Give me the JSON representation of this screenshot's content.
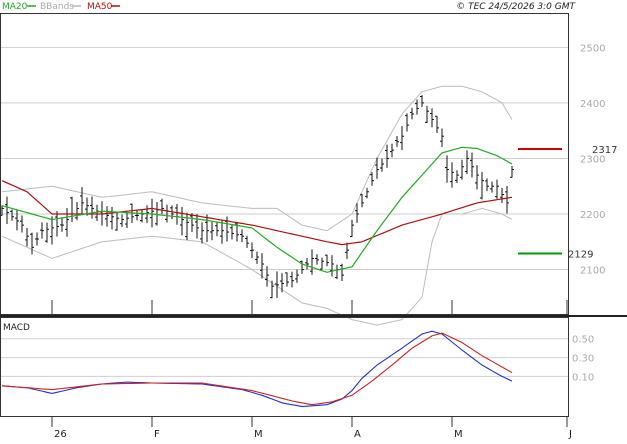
{
  "header": {
    "legend": [
      {
        "label": "MA20",
        "color": "#22aa22"
      },
      {
        "label": "BBands",
        "color": "#b8b8b8"
      },
      {
        "label": "MA50",
        "color": "#aa1111"
      }
    ],
    "copyright": "© TEC 24/5/2026 3:0 GMT"
  },
  "macd_label": "MACD",
  "levels": {
    "resistance": {
      "value": 2317,
      "label": "2317",
      "color": "#cc0000"
    },
    "support": {
      "value": 2129,
      "label": "2129",
      "color": "#009900"
    }
  },
  "chart_data": [
    {
      "type": "ohlc",
      "title": "",
      "ylim": [
        2020,
        2560
      ],
      "y_ticks": [
        {
          "value": 2500,
          "label": "2500"
        },
        {
          "value": 2400,
          "label": "2400"
        },
        {
          "value": 2300,
          "label": "2300"
        },
        {
          "value": 2200,
          "label": "2200"
        },
        {
          "value": 2100,
          "label": "2100"
        }
      ],
      "x_ticks": [
        {
          "bar": 10,
          "label": "26"
        },
        {
          "bar": 30,
          "label": "F"
        },
        {
          "bar": 50,
          "label": "M"
        },
        {
          "bar": 70,
          "label": "A"
        },
        {
          "bar": 90,
          "label": "M"
        },
        {
          "bar": 113,
          "label": "J"
        }
      ],
      "bars": 115,
      "price_anchors": [
        [
          0,
          2210
        ],
        [
          4,
          2180
        ],
        [
          6,
          2140
        ],
        [
          8,
          2170
        ],
        [
          12,
          2180
        ],
        [
          16,
          2220
        ],
        [
          20,
          2200
        ],
        [
          24,
          2190
        ],
        [
          28,
          2200
        ],
        [
          32,
          2210
        ],
        [
          36,
          2190
        ],
        [
          40,
          2170
        ],
        [
          44,
          2170
        ],
        [
          48,
          2160
        ],
        [
          52,
          2110
        ],
        [
          54,
          2070
        ],
        [
          58,
          2080
        ],
        [
          62,
          2120
        ],
        [
          66,
          2110
        ],
        [
          68,
          2090
        ],
        [
          70,
          2180
        ],
        [
          73,
          2240
        ],
        [
          75,
          2280
        ],
        [
          77,
          2300
        ],
        [
          79,
          2330
        ],
        [
          80,
          2340
        ],
        [
          82,
          2380
        ],
        [
          84,
          2400
        ],
        [
          86,
          2370
        ],
        [
          88,
          2340
        ],
        [
          89,
          2280
        ],
        [
          91,
          2270
        ],
        [
          93,
          2300
        ],
        [
          95,
          2270
        ],
        [
          97,
          2250
        ],
        [
          99,
          2250
        ],
        [
          101,
          2220
        ],
        [
          102,
          2280
        ]
      ],
      "ma20_anchors": [
        [
          0,
          2215
        ],
        [
          10,
          2190
        ],
        [
          20,
          2205
        ],
        [
          30,
          2200
        ],
        [
          40,
          2190
        ],
        [
          50,
          2175
        ],
        [
          55,
          2140
        ],
        [
          60,
          2110
        ],
        [
          65,
          2095
        ],
        [
          70,
          2105
        ],
        [
          75,
          2170
        ],
        [
          80,
          2230
        ],
        [
          85,
          2280
        ],
        [
          88,
          2310
        ],
        [
          92,
          2320
        ],
        [
          95,
          2318
        ],
        [
          99,
          2305
        ],
        [
          102,
          2290
        ]
      ],
      "ma50_anchors": [
        [
          0,
          2260
        ],
        [
          5,
          2240
        ],
        [
          10,
          2200
        ],
        [
          20,
          2200
        ],
        [
          30,
          2210
        ],
        [
          40,
          2195
        ],
        [
          50,
          2180
        ],
        [
          60,
          2160
        ],
        [
          65,
          2150
        ],
        [
          68,
          2145
        ],
        [
          72,
          2150
        ],
        [
          80,
          2180
        ],
        [
          88,
          2200
        ],
        [
          95,
          2220
        ],
        [
          102,
          2230
        ]
      ],
      "bb_upper_anchors": [
        [
          0,
          2240
        ],
        [
          10,
          2250
        ],
        [
          20,
          2230
        ],
        [
          30,
          2240
        ],
        [
          40,
          2220
        ],
        [
          50,
          2210
        ],
        [
          55,
          2210
        ],
        [
          60,
          2180
        ],
        [
          65,
          2170
        ],
        [
          70,
          2200
        ],
        [
          75,
          2300
        ],
        [
          80,
          2380
        ],
        [
          84,
          2420
        ],
        [
          88,
          2430
        ],
        [
          92,
          2430
        ],
        [
          96,
          2420
        ],
        [
          100,
          2400
        ],
        [
          102,
          2370
        ]
      ],
      "bb_lower_anchors": [
        [
          0,
          2160
        ],
        [
          10,
          2120
        ],
        [
          20,
          2150
        ],
        [
          30,
          2160
        ],
        [
          40,
          2150
        ],
        [
          50,
          2100
        ],
        [
          55,
          2070
        ],
        [
          60,
          2040
        ],
        [
          65,
          2030
        ],
        [
          70,
          2010
        ],
        [
          75,
          2000
        ],
        [
          80,
          2010
        ],
        [
          84,
          2050
        ],
        [
          86,
          2150
        ],
        [
          88,
          2200
        ],
        [
          92,
          2200
        ],
        [
          96,
          2210
        ],
        [
          100,
          2200
        ],
        [
          102,
          2190
        ]
      ]
    },
    {
      "type": "line",
      "title": "MACD",
      "ylim": [
        -0.32,
        0.72
      ],
      "y_ticks": [
        {
          "value": 0.5,
          "label": "0.50"
        },
        {
          "value": 0.3,
          "label": "0.30"
        },
        {
          "value": 0.1,
          "label": "0.10"
        }
      ],
      "series": [
        {
          "color": "#2233cc",
          "anchors": [
            [
              0,
              0.0
            ],
            [
              5,
              -0.02
            ],
            [
              10,
              -0.08
            ],
            [
              15,
              -0.02
            ],
            [
              20,
              0.02
            ],
            [
              25,
              0.04
            ],
            [
              30,
              0.03
            ],
            [
              40,
              0.02
            ],
            [
              48,
              -0.04
            ],
            [
              52,
              -0.1
            ],
            [
              56,
              -0.18
            ],
            [
              60,
              -0.22
            ],
            [
              65,
              -0.2
            ],
            [
              68,
              -0.14
            ],
            [
              70,
              -0.05
            ],
            [
              72,
              0.08
            ],
            [
              75,
              0.22
            ],
            [
              80,
              0.4
            ],
            [
              84,
              0.55
            ],
            [
              86,
              0.58
            ],
            [
              88,
              0.55
            ],
            [
              92,
              0.38
            ],
            [
              96,
              0.22
            ],
            [
              100,
              0.1
            ],
            [
              102,
              0.05
            ]
          ]
        },
        {
          "color": "#cc2222",
          "anchors": [
            [
              0,
              0.0
            ],
            [
              10,
              -0.04
            ],
            [
              20,
              0.02
            ],
            [
              30,
              0.03
            ],
            [
              40,
              0.03
            ],
            [
              50,
              -0.05
            ],
            [
              58,
              -0.16
            ],
            [
              62,
              -0.2
            ],
            [
              66,
              -0.17
            ],
            [
              70,
              -0.1
            ],
            [
              74,
              0.05
            ],
            [
              78,
              0.22
            ],
            [
              82,
              0.4
            ],
            [
              86,
              0.53
            ],
            [
              88,
              0.56
            ],
            [
              92,
              0.46
            ],
            [
              96,
              0.32
            ],
            [
              100,
              0.2
            ],
            [
              102,
              0.14
            ]
          ]
        }
      ]
    }
  ]
}
